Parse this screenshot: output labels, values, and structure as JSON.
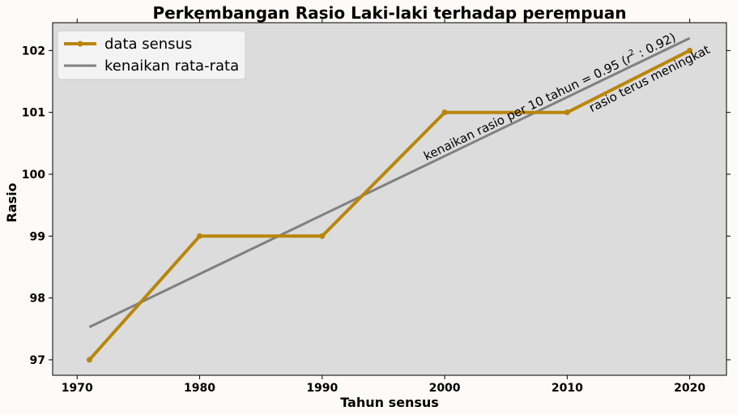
{
  "chart_data": {
    "type": "line",
    "title": "Perkembangan Rasio Laki-laki terhadap perempuan",
    "xlabel": "Tahun sensus",
    "ylabel": "Rasio",
    "xlim": [
      1968,
      2023
    ],
    "ylim": [
      96.75,
      102.45
    ],
    "xticks": [
      1970,
      1980,
      1990,
      2000,
      2010,
      2020
    ],
    "yticks": [
      97,
      98,
      99,
      100,
      101,
      102
    ],
    "grid": false,
    "legend_position": "top-left",
    "background_color": "#dcdcdc",
    "series": [
      {
        "name": "data sensus",
        "color": "#b8860b",
        "marker": "circle",
        "x": [
          1971,
          1980,
          1990,
          2000,
          2010,
          2020
        ],
        "y": [
          97,
          99,
          99,
          101,
          101,
          102
        ]
      },
      {
        "name": "kenaikan rata-rata",
        "color": "#808080",
        "marker": "none",
        "x": [
          1971,
          2020
        ],
        "y": [
          97.53,
          102.2
        ]
      }
    ],
    "annotations": [
      {
        "text_prefix": "kenaikan rasio per 10 tahun = 0.95 (",
        "text_var": "r",
        "text_sup": "2",
        "text_suffix": " : 0.92)",
        "x": 1998.5,
        "y": 100.22
      },
      {
        "text": "rasio terus meningkat",
        "x": 2012,
        "y": 101.0
      }
    ]
  }
}
